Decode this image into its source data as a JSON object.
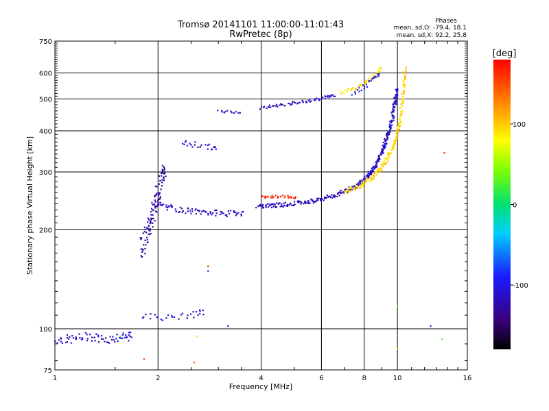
{
  "chart_data": {
    "type": "scatter",
    "title": "Tromsø 20141101 11:00:00-11:01:43",
    "subtitle": "RwPretec (8p)",
    "xlabel": "Frequency [MHz]",
    "ylabel": "Stationary phase Virtual Height [km]",
    "x_scale": "log2",
    "y_scale": "log",
    "xlim": [
      1,
      16
    ],
    "ylim": [
      75,
      750
    ],
    "x_ticks": [
      1,
      2,
      4,
      6,
      8,
      10,
      16
    ],
    "y_ticks": [
      75,
      100,
      200,
      300,
      400,
      500,
      600,
      750
    ],
    "grid": true,
    "stats": {
      "title": "Phases",
      "line_o": "mean, sd,O: -79.4, 18.1",
      "line_x": "mean, sd,X:  92.2, 25.8"
    },
    "colorbar": {
      "label": "[deg]",
      "range": [
        -180,
        180
      ],
      "ticks": [
        100,
        0,
        -100
      ]
    },
    "traces": [
      {
        "x": [
          1.0,
          1.12,
          1.25,
          1.4,
          1.55,
          1.7
        ],
        "y": [
          93,
          93,
          95,
          93,
          94,
          95
        ],
        "phase": -110,
        "scatter": 0.03,
        "n": 14
      },
      {
        "x": [
          1.78,
          1.88,
          1.95,
          2.02,
          2.1
        ],
        "y": [
          175,
          200,
          235,
          265,
          310
        ],
        "phase": -125,
        "scatter": 0.09,
        "n": 28
      },
      {
        "x": [
          2.0,
          2.2,
          2.5,
          2.8,
          3.2,
          3.6
        ],
        "y": [
          240,
          232,
          228,
          226,
          224,
          226
        ],
        "phase": -112,
        "scatter": 0.02,
        "n": 16
      },
      {
        "x": [
          1.8,
          2.1,
          2.5,
          2.75
        ],
        "y": [
          110,
          108,
          110,
          113
        ],
        "phase": -108,
        "scatter": 0.02,
        "n": 10
      },
      {
        "x": [
          2.35,
          2.55,
          2.8,
          3.0
        ],
        "y": [
          368,
          364,
          357,
          353
        ],
        "phase": -110,
        "scatter": 0.02,
        "n": 8
      },
      {
        "x": [
          3.0,
          3.25,
          3.55
        ],
        "y": [
          458,
          458,
          457
        ],
        "phase": -112,
        "scatter": 0.01,
        "n": 6
      },
      {
        "x": [
          3.9,
          4.5,
          5.3,
          6.0,
          6.8,
          7.6,
          8.2,
          8.6,
          9.0,
          9.3,
          9.6,
          9.8,
          10.0
        ],
        "y": [
          236,
          238,
          242,
          248,
          258,
          272,
          292,
          312,
          345,
          380,
          420,
          480,
          540
        ],
        "phase": -115,
        "scatter": 0.015,
        "n": 30
      },
      {
        "x": [
          7.0,
          7.8,
          8.5,
          9.0,
          9.5,
          9.9,
          10.2,
          10.4,
          10.5
        ],
        "y": [
          262,
          272,
          290,
          310,
          340,
          380,
          430,
          520,
          620
        ],
        "phase": 95,
        "scatter": 0.015,
        "n": 24
      },
      {
        "x": [
          4.0,
          4.3,
          4.7,
          5.1
        ],
        "y": [
          252,
          253,
          252,
          251
        ],
        "phase": 165,
        "scatter": 0.01,
        "n": 10
      },
      {
        "x": [
          4.0,
          4.6,
          5.3,
          6.0,
          6.6
        ],
        "y": [
          470,
          480,
          490,
          502,
          515
        ],
        "phase": -115,
        "scatter": 0.01,
        "n": 16
      },
      {
        "x": [
          6.8,
          7.5,
          8.1,
          8.6,
          9.0
        ],
        "y": [
          525,
          540,
          560,
          590,
          630
        ],
        "phase": 90,
        "scatter": 0.015,
        "n": 12
      },
      {
        "x": [
          7.4,
          8.0,
          8.5,
          8.9
        ],
        "y": [
          520,
          545,
          575,
          605
        ],
        "phase": -100,
        "scatter": 0.015,
        "n": 8
      }
    ],
    "isolated_points": [
      {
        "x": 2.8,
        "y": 155,
        "phase": 180
      },
      {
        "x": 2.8,
        "y": 150,
        "phase": -100
      },
      {
        "x": 3.2,
        "y": 102,
        "phase": -110
      },
      {
        "x": 10.0,
        "y": 117,
        "phase": 30
      },
      {
        "x": 10.0,
        "y": 87,
        "phase": 100
      },
      {
        "x": 12.5,
        "y": 102,
        "phase": -110
      },
      {
        "x": 13.7,
        "y": 343,
        "phase": 165
      },
      {
        "x": 13.5,
        "y": 93,
        "phase": 20
      },
      {
        "x": 1.82,
        "y": 81,
        "phase": 150
      },
      {
        "x": 2.55,
        "y": 79,
        "phase": 150
      },
      {
        "x": 1.55,
        "y": 95,
        "phase": 30
      },
      {
        "x": 2.6,
        "y": 95,
        "phase": 60
      }
    ]
  }
}
